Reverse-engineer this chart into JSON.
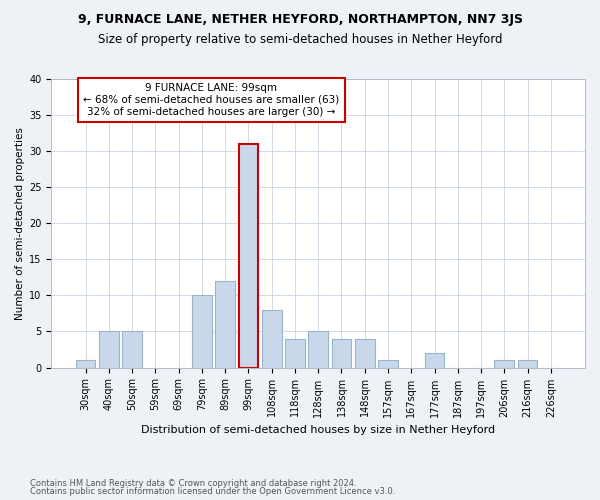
{
  "title": "9, FURNACE LANE, NETHER HEYFORD, NORTHAMPTON, NN7 3JS",
  "subtitle": "Size of property relative to semi-detached houses in Nether Heyford",
  "xlabel": "Distribution of semi-detached houses by size in Nether Heyford",
  "ylabel": "Number of semi-detached properties",
  "footnote1": "Contains HM Land Registry data © Crown copyright and database right 2024.",
  "footnote2": "Contains public sector information licensed under the Open Government Licence v3.0.",
  "categories": [
    "30sqm",
    "40sqm",
    "50sqm",
    "59sqm",
    "69sqm",
    "79sqm",
    "89sqm",
    "99sqm",
    "108sqm",
    "118sqm",
    "128sqm",
    "138sqm",
    "148sqm",
    "157sqm",
    "167sqm",
    "177sqm",
    "187sqm",
    "197sqm",
    "206sqm",
    "216sqm",
    "226sqm"
  ],
  "values": [
    1,
    5,
    5,
    0,
    0,
    10,
    12,
    31,
    8,
    4,
    5,
    4,
    4,
    1,
    0,
    2,
    0,
    0,
    1,
    1,
    0
  ],
  "highlight_index": 7,
  "bar_color_normal": "#c8d8ea",
  "bar_edge_normal": "#9ab4c8",
  "bar_edge_highlight": "#cc0000",
  "annotation_text": "9 FURNACE LANE: 99sqm\n← 68% of semi-detached houses are smaller (63)\n32% of semi-detached houses are larger (30) →",
  "annotation_box_color": "#cc0000",
  "ylim": [
    0,
    40
  ],
  "yticks": [
    0,
    5,
    10,
    15,
    20,
    25,
    30,
    35,
    40
  ],
  "background_color": "#eef2f7",
  "plot_bg_color": "#ffffff",
  "grid_color": "#c8d4e0",
  "title_fontsize": 9,
  "subtitle_fontsize": 8.5,
  "tick_fontsize": 7,
  "ylabel_fontsize": 7.5,
  "xlabel_fontsize": 8,
  "annotation_fontsize": 7.5,
  "footnote_fontsize": 6
}
